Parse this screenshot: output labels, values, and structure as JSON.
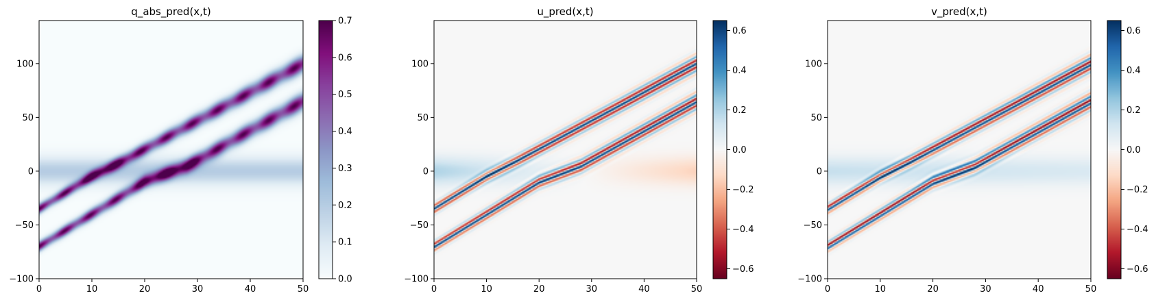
{
  "chart_data": [
    {
      "type": "heatmap",
      "title": "q_abs_pred(x,t)",
      "colormap": "BuPu",
      "xlim": [
        0,
        50
      ],
      "ylim": [
        -100,
        140
      ],
      "x_ticks": [
        0,
        10,
        20,
        30,
        40,
        50
      ],
      "y_ticks": [
        -100,
        -50,
        0,
        50,
        100
      ],
      "colorbar": {
        "min": 0.0,
        "max": 0.7,
        "ticks": [
          0.0,
          0.1,
          0.2,
          0.3,
          0.4,
          0.5,
          0.6,
          0.7
        ],
        "tick_labels": [
          "0.0",
          "0.1",
          "0.2",
          "0.3",
          "0.4",
          "0.5",
          "0.6",
          "0.7"
        ]
      },
      "features": [
        {
          "feature": "soliton-track",
          "path": [
            [
              0,
              -35
            ],
            [
              10,
              -5
            ],
            [
              16,
              10
            ],
            [
              35,
              60
            ],
            [
              50,
              100
            ]
          ],
          "peak": 0.7
        },
        {
          "feature": "soliton-track",
          "path": [
            [
              0,
              -70
            ],
            [
              20,
              -10
            ],
            [
              28,
              5
            ],
            [
              50,
              65
            ]
          ],
          "peak": 0.7
        },
        {
          "feature": "background-band",
          "y_center": 0,
          "peak": 0.2
        }
      ]
    },
    {
      "type": "heatmap",
      "title": "u_pred(x,t)",
      "colormap": "RdBu",
      "xlim": [
        0,
        50
      ],
      "ylim": [
        -100,
        140
      ],
      "x_ticks": [
        0,
        10,
        20,
        30,
        40,
        50
      ],
      "y_ticks": [
        -100,
        -50,
        0,
        50,
        100
      ],
      "colorbar": {
        "min": -0.65,
        "max": 0.65,
        "ticks": [
          -0.6,
          -0.4,
          -0.2,
          0.0,
          0.2,
          0.4,
          0.6
        ],
        "tick_labels": [
          "−0.6",
          "−0.4",
          "−0.2",
          "0.0",
          "0.2",
          "0.4",
          "0.6"
        ]
      },
      "features": [
        {
          "feature": "oscillating-track",
          "path": [
            [
              0,
              -35
            ],
            [
              10,
              -5
            ],
            [
              16,
              10
            ],
            [
              35,
              60
            ],
            [
              50,
              100
            ]
          ],
          "amplitude": 0.65
        },
        {
          "feature": "oscillating-track",
          "path": [
            [
              0,
              -70
            ],
            [
              20,
              -10
            ],
            [
              28,
              5
            ],
            [
              50,
              65
            ]
          ],
          "amplitude": 0.65
        },
        {
          "feature": "background-band",
          "y_center": 0,
          "value_left": 0.2,
          "value_right": -0.15
        }
      ]
    },
    {
      "type": "heatmap",
      "title": "v_pred(x,t)",
      "colormap": "RdBu",
      "xlim": [
        0,
        50
      ],
      "ylim": [
        -100,
        140
      ],
      "x_ticks": [
        0,
        10,
        20,
        30,
        40,
        50
      ],
      "y_ticks": [
        -100,
        -50,
        0,
        50,
        100
      ],
      "colorbar": {
        "min": -0.65,
        "max": 0.65,
        "ticks": [
          -0.6,
          -0.4,
          -0.2,
          0.0,
          0.2,
          0.4,
          0.6
        ],
        "tick_labels": [
          "−0.6",
          "−0.4",
          "−0.2",
          "0.0",
          "0.2",
          "0.4",
          "0.6"
        ]
      },
      "features": [
        {
          "feature": "oscillating-track",
          "path": [
            [
              0,
              -35
            ],
            [
              10,
              -5
            ],
            [
              16,
              10
            ],
            [
              35,
              60
            ],
            [
              50,
              100
            ]
          ],
          "amplitude": 0.65
        },
        {
          "feature": "oscillating-track",
          "path": [
            [
              0,
              -70
            ],
            [
              20,
              -10
            ],
            [
              28,
              5
            ],
            [
              50,
              65
            ]
          ],
          "amplitude": 0.65
        },
        {
          "feature": "background-band",
          "y_center": 0,
          "value_left": 0.15,
          "value_right": 0.1
        }
      ]
    }
  ]
}
